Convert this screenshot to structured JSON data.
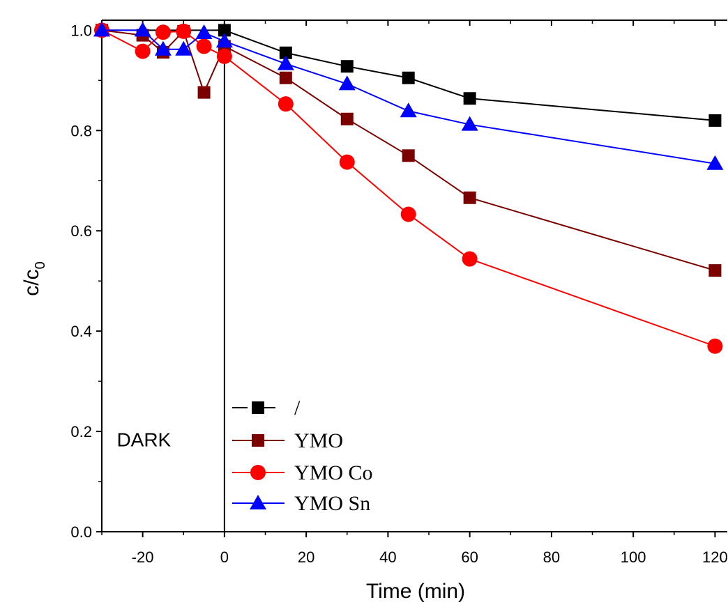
{
  "chart_data": {
    "type": "line",
    "title": "",
    "xlabel": "Time (min)",
    "ylabel_main": "c/c",
    "ylabel_sub": "0",
    "xlim": [
      -30,
      123
    ],
    "ylim": [
      0.0,
      1.02
    ],
    "xticks": [
      -20,
      0,
      20,
      40,
      60,
      80,
      100,
      120
    ],
    "xtick_labels": [
      "-20",
      "0",
      "20",
      "40",
      "60",
      "80",
      "100",
      "120"
    ],
    "yticks": [
      0.0,
      0.2,
      0.4,
      0.6,
      0.8,
      1.0
    ],
    "ytick_labels": [
      "0.0",
      "0.2",
      "0.4",
      "0.6",
      "0.8",
      "1.0"
    ],
    "grid": false,
    "legend_placement": "bottom-left",
    "annotations": [
      {
        "text": "DARK",
        "x": -26,
        "y": 0.17
      }
    ],
    "vline_x": 0,
    "series": [
      {
        "name": "/",
        "color": "#000000",
        "marker": "square",
        "dashed_legend": true,
        "points": [
          [
            -30,
            1.0
          ],
          [
            0,
            1.0
          ],
          [
            15,
            0.955
          ],
          [
            30,
            0.928
          ],
          [
            45,
            0.905
          ],
          [
            60,
            0.864
          ],
          [
            120,
            0.82
          ]
        ]
      },
      {
        "name": "YMO",
        "color": "#7b0000",
        "marker": "square",
        "points": [
          [
            -30,
            1.0
          ],
          [
            -20,
            0.99
          ],
          [
            -15,
            0.956
          ],
          [
            -10,
            0.998
          ],
          [
            -5,
            0.876
          ],
          [
            0,
            0.968
          ],
          [
            15,
            0.905
          ],
          [
            30,
            0.823
          ],
          [
            45,
            0.75
          ],
          [
            60,
            0.666
          ],
          [
            120,
            0.521
          ]
        ]
      },
      {
        "name": "YMO Co",
        "color": "#ff0000",
        "marker": "circle",
        "points": [
          [
            -30,
            1.0
          ],
          [
            -20,
            0.958
          ],
          [
            -15,
            0.996
          ],
          [
            -10,
            0.998
          ],
          [
            -5,
            0.968
          ],
          [
            0,
            0.948
          ],
          [
            15,
            0.853
          ],
          [
            30,
            0.737
          ],
          [
            45,
            0.633
          ],
          [
            60,
            0.544
          ],
          [
            120,
            0.37
          ]
        ]
      },
      {
        "name": "YMO Sn",
        "color": "#0000ff",
        "marker": "triangle",
        "points": [
          [
            -30,
            1.0
          ],
          [
            -20,
            1.0
          ],
          [
            -15,
            0.962
          ],
          [
            -10,
            0.962
          ],
          [
            -5,
            0.995
          ],
          [
            0,
            0.978
          ],
          [
            15,
            0.933
          ],
          [
            30,
            0.893
          ],
          [
            45,
            0.839
          ],
          [
            60,
            0.812
          ],
          [
            120,
            0.734
          ]
        ]
      }
    ]
  }
}
